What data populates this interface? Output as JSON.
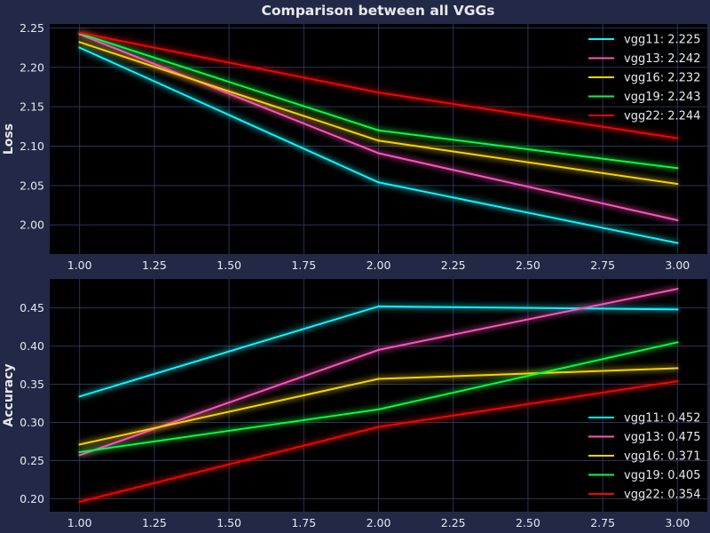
{
  "title": "Comparison between all VGGs",
  "chart_data": [
    {
      "type": "line",
      "ylabel": "Loss",
      "xlabel": "",
      "xlim": [
        0.9,
        3.1
      ],
      "ylim": [
        1.963,
        2.255
      ],
      "xticks": [
        1.0,
        1.25,
        1.5,
        1.75,
        2.0,
        2.25,
        2.5,
        2.75,
        3.0
      ],
      "xtick_labels": [
        "1.00",
        "1.25",
        "1.50",
        "1.75",
        "2.00",
        "2.25",
        "2.50",
        "2.75",
        "3.00"
      ],
      "yticks": [
        2.0,
        2.05,
        2.1,
        2.15,
        2.2,
        2.25
      ],
      "ytick_labels": [
        "2.00",
        "2.05",
        "2.10",
        "2.15",
        "2.20",
        "2.25"
      ],
      "grid": true,
      "legend_position": "top-right",
      "x": [
        1,
        2,
        3
      ],
      "series": [
        {
          "name": "vgg11",
          "legend": "vgg11: 2.225",
          "color": "#08F7FE",
          "values": [
            2.225,
            2.054,
            1.977
          ]
        },
        {
          "name": "vgg13",
          "legend": "vgg13: 2.242",
          "color": "#FE53BB",
          "values": [
            2.242,
            2.091,
            2.006
          ]
        },
        {
          "name": "vgg16",
          "legend": "vgg16: 2.232",
          "color": "#F5D300",
          "values": [
            2.232,
            2.107,
            2.052
          ]
        },
        {
          "name": "vgg19",
          "legend": "vgg19: 2.243",
          "color": "#00ff41",
          "values": [
            2.243,
            2.12,
            2.072
          ]
        },
        {
          "name": "vgg22",
          "legend": "vgg22: 2.244",
          "color": "#FF0000",
          "values": [
            2.244,
            2.168,
            2.11
          ]
        }
      ]
    },
    {
      "type": "line",
      "ylabel": "Accuracy",
      "xlabel": "",
      "xlim": [
        0.9,
        3.1
      ],
      "ylim": [
        0.183,
        0.488
      ],
      "xticks": [
        1.0,
        1.25,
        1.5,
        1.75,
        2.0,
        2.25,
        2.5,
        2.75,
        3.0
      ],
      "xtick_labels": [
        "1.00",
        "1.25",
        "1.50",
        "1.75",
        "2.00",
        "2.25",
        "2.50",
        "2.75",
        "3.00"
      ],
      "yticks": [
        0.2,
        0.25,
        0.3,
        0.35,
        0.4,
        0.45
      ],
      "ytick_labels": [
        "0.20",
        "0.25",
        "0.30",
        "0.35",
        "0.40",
        "0.45"
      ],
      "grid": true,
      "legend_position": "bottom-right",
      "x": [
        1,
        2,
        3
      ],
      "series": [
        {
          "name": "vgg11",
          "legend": "vgg11: 0.452",
          "color": "#08F7FE",
          "values": [
            0.334,
            0.452,
            0.448
          ]
        },
        {
          "name": "vgg13",
          "legend": "vgg13: 0.475",
          "color": "#FE53BB",
          "values": [
            0.257,
            0.395,
            0.475
          ]
        },
        {
          "name": "vgg16",
          "legend": "vgg16: 0.371",
          "color": "#F5D300",
          "values": [
            0.271,
            0.357,
            0.371
          ]
        },
        {
          "name": "vgg19",
          "legend": "vgg19: 0.405",
          "color": "#00ff41",
          "values": [
            0.261,
            0.317,
            0.405
          ]
        },
        {
          "name": "vgg22",
          "legend": "vgg22: 0.354",
          "color": "#FF0000",
          "values": [
            0.196,
            0.294,
            0.354
          ]
        }
      ]
    }
  ]
}
